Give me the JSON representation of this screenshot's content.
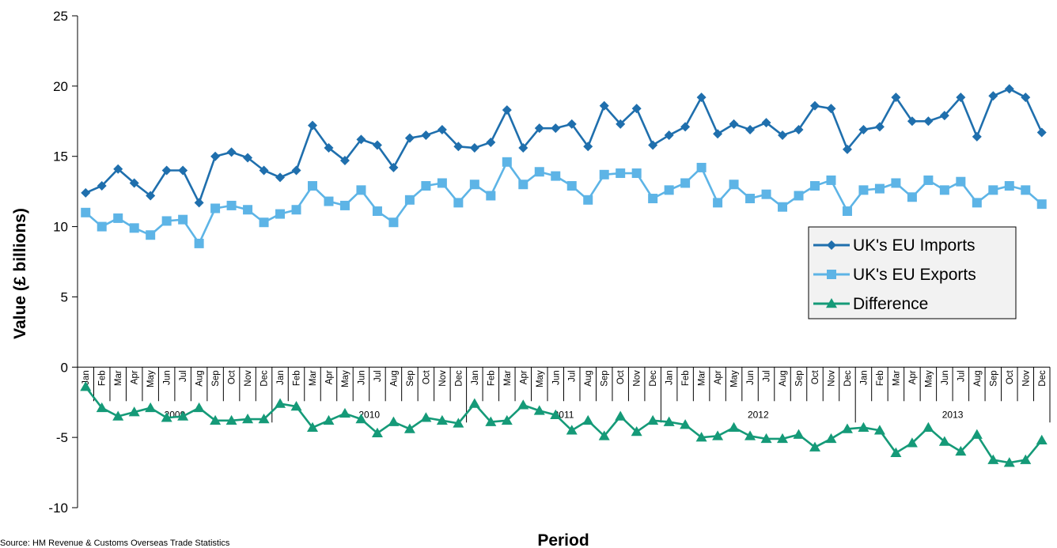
{
  "chart_data": {
    "type": "line",
    "title": "",
    "xlabel": "Period",
    "ylabel": "Value (£ billions)",
    "ylim": [
      -10,
      25
    ],
    "yticks": [
      25,
      20,
      15,
      10,
      5,
      0,
      -5,
      -10
    ],
    "years": [
      "2009",
      "2010",
      "2011",
      "2012",
      "2013"
    ],
    "months": [
      "Jan",
      "Feb",
      "Mar",
      "Apr",
      "May",
      "Jun",
      "Jul",
      "Aug",
      "Sep",
      "Oct",
      "Nov",
      "Dec"
    ],
    "grid": false,
    "legend_position": "right",
    "series": [
      {
        "name": "UK's EU Imports",
        "color": "#1f6fad",
        "marker": "diamond",
        "values": [
          12.4,
          12.9,
          14.1,
          13.1,
          12.2,
          14.0,
          14.0,
          11.7,
          15.0,
          15.3,
          14.9,
          14.0,
          13.5,
          14.0,
          17.2,
          15.6,
          14.7,
          16.2,
          15.8,
          14.2,
          16.3,
          16.5,
          16.9,
          15.7,
          15.6,
          16.0,
          18.3,
          15.6,
          17.0,
          17.0,
          17.3,
          15.7,
          18.6,
          17.3,
          18.4,
          15.8,
          16.5,
          17.1,
          19.2,
          16.6,
          17.3,
          16.9,
          17.4,
          16.5,
          16.9,
          18.6,
          18.4,
          15.5,
          16.9,
          17.1,
          19.2,
          17.5,
          17.5,
          17.9,
          19.2,
          16.4,
          19.3,
          19.8,
          19.2,
          16.7
        ]
      },
      {
        "name": "UK's EU Exports",
        "color": "#5db4e6",
        "marker": "square",
        "values": [
          11.0,
          10.0,
          10.6,
          9.9,
          9.4,
          10.4,
          10.5,
          8.8,
          11.3,
          11.5,
          11.2,
          10.3,
          10.9,
          11.2,
          12.9,
          11.8,
          11.5,
          12.6,
          11.1,
          10.3,
          11.9,
          12.9,
          13.1,
          11.7,
          13.0,
          12.2,
          14.6,
          13.0,
          13.9,
          13.6,
          12.9,
          11.9,
          13.7,
          13.8,
          13.8,
          12.0,
          12.6,
          13.1,
          14.2,
          11.7,
          13.0,
          12.0,
          12.3,
          11.4,
          12.2,
          12.9,
          13.3,
          11.1,
          12.6,
          12.7,
          13.1,
          12.1,
          13.3,
          12.6,
          13.2,
          11.7,
          12.6,
          12.9,
          12.6,
          11.6
        ]
      },
      {
        "name": "Difference",
        "color": "#159a78",
        "marker": "triangle",
        "values": [
          -1.4,
          -2.9,
          -3.5,
          -3.2,
          -2.9,
          -3.6,
          -3.5,
          -2.9,
          -3.8,
          -3.8,
          -3.7,
          -3.7,
          -2.6,
          -2.8,
          -4.3,
          -3.8,
          -3.3,
          -3.7,
          -4.7,
          -3.9,
          -4.4,
          -3.6,
          -3.8,
          -4.0,
          -2.6,
          -3.9,
          -3.8,
          -2.7,
          -3.1,
          -3.4,
          -4.5,
          -3.8,
          -4.9,
          -3.5,
          -4.6,
          -3.8,
          -3.9,
          -4.1,
          -5.0,
          -4.9,
          -4.3,
          -4.9,
          -5.1,
          -5.1,
          -4.8,
          -5.7,
          -5.1,
          -4.4,
          -4.3,
          -4.5,
          -6.1,
          -5.4,
          -4.3,
          -5.3,
          -6.0,
          -4.8,
          -6.6,
          -6.8,
          -6.6,
          -5.2
        ]
      }
    ],
    "source": "Source: HM Revenue & Customs Overseas Trade Statistics"
  }
}
